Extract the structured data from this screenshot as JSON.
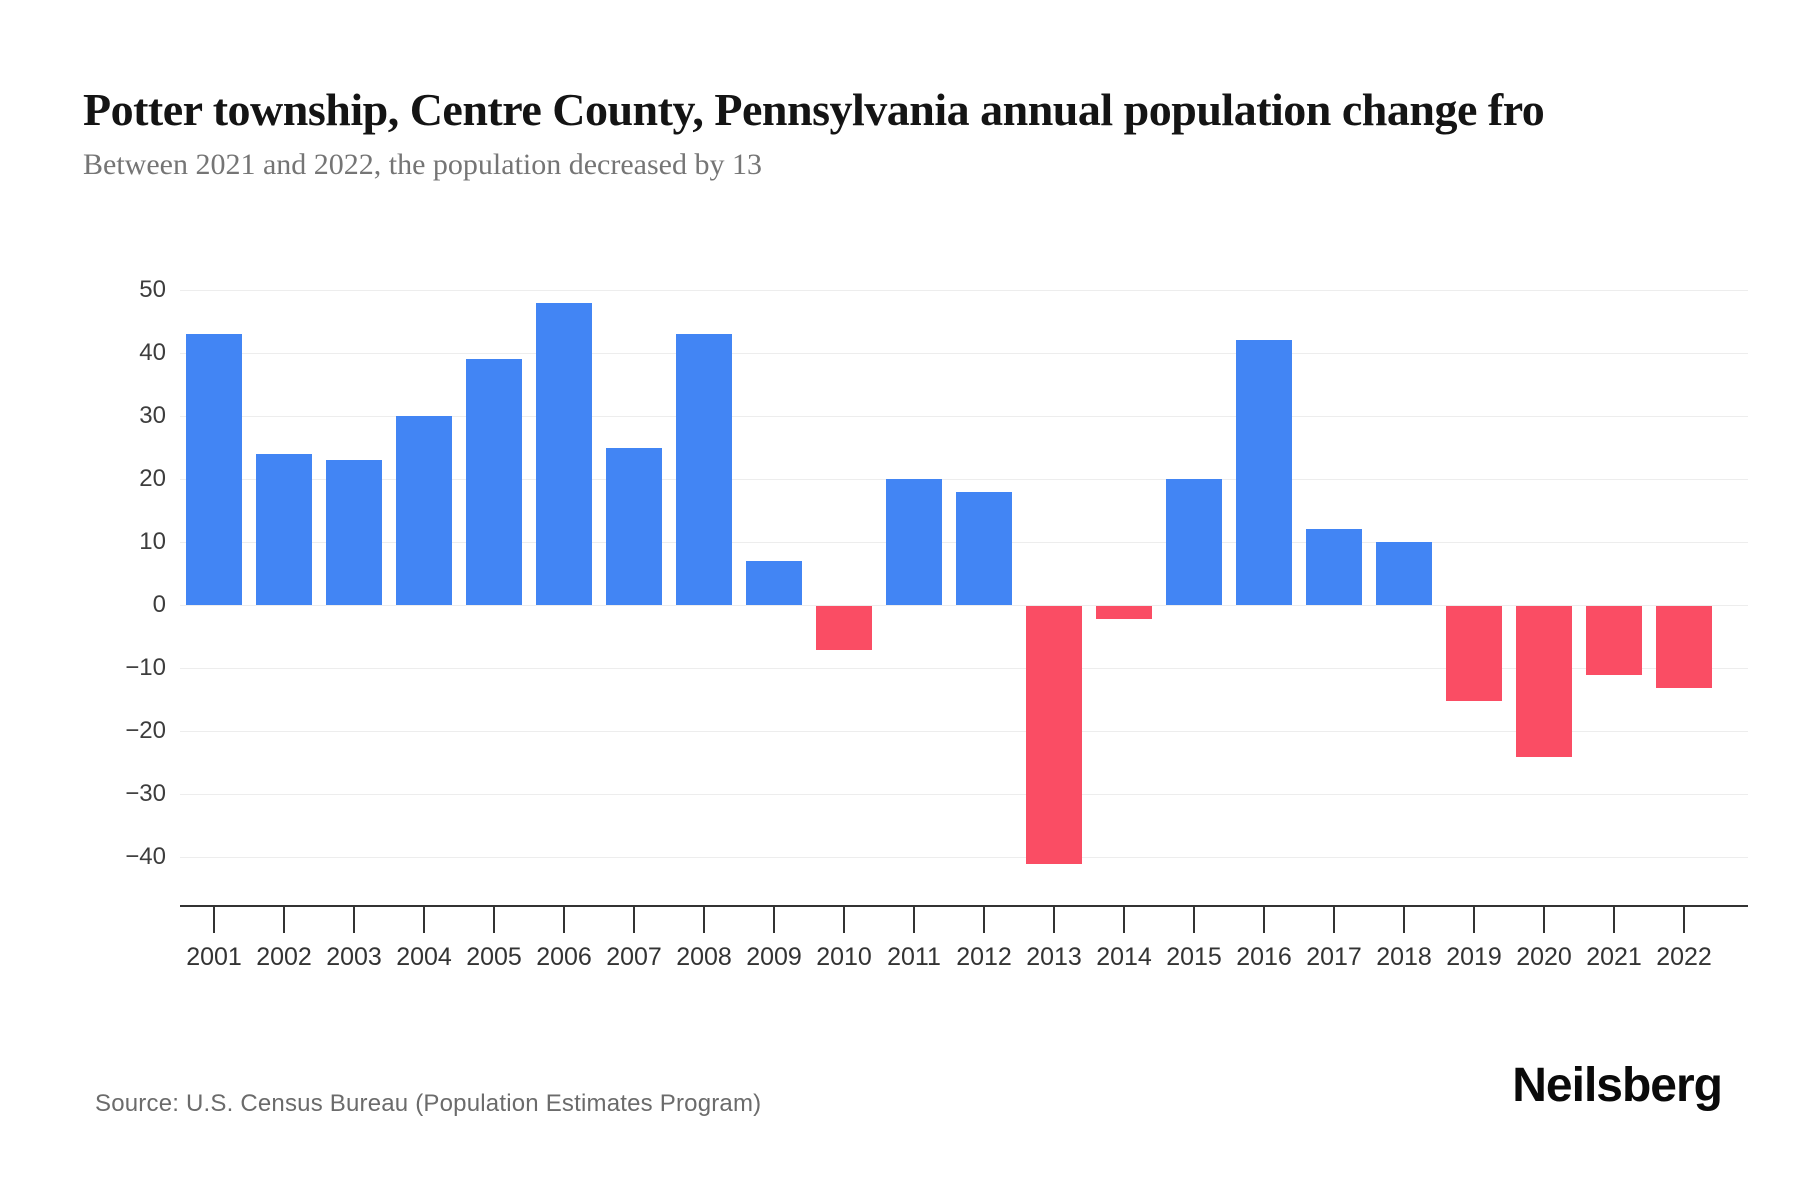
{
  "header": {
    "title": "Potter township, Centre County, Pennsylvania annual population change fro",
    "subtitle": "Between 2021 and 2022, the population decreased by 13"
  },
  "chart_data": {
    "type": "bar",
    "title": "Potter township, Centre County, Pennsylvania annual population change",
    "xlabel": "",
    "ylabel": "",
    "categories": [
      "2001",
      "2002",
      "2003",
      "2004",
      "2005",
      "2006",
      "2007",
      "2008",
      "2009",
      "2010",
      "2011",
      "2012",
      "2013",
      "2014",
      "2015",
      "2016",
      "2017",
      "2018",
      "2019",
      "2020",
      "2021",
      "2022"
    ],
    "values": [
      43,
      24,
      23,
      30,
      39,
      48,
      25,
      43,
      7,
      -7,
      20,
      18,
      -41,
      -2,
      20,
      42,
      12,
      10,
      -15,
      -24,
      -11,
      -13
    ],
    "yticks": [
      50,
      40,
      30,
      20,
      10,
      0,
      -10,
      -20,
      -30,
      -40
    ],
    "ylim": [
      -47,
      53
    ],
    "grid": true,
    "legend": false,
    "positive_color": "#4285F4",
    "negative_color": "#FA4D64"
  },
  "footer": {
    "source": "Source: U.S. Census Bureau (Population Estimates Program)",
    "brand": "Neilsberg"
  }
}
